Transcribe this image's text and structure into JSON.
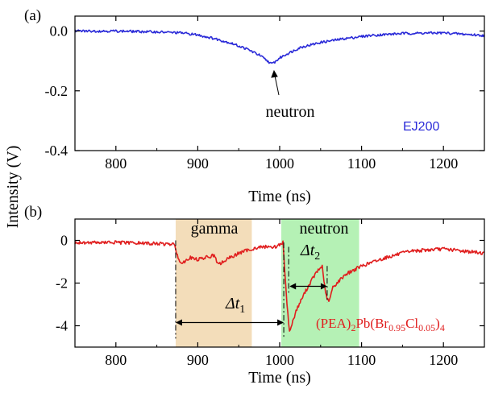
{
  "chart_data": [
    {
      "panel": "(a)",
      "type": "line",
      "xlabel": "Time (ns)",
      "ylabel": "Intensity (V)",
      "xlim": [
        750,
        1250
      ],
      "ylim": [
        -0.4,
        0.05
      ],
      "xticks": [
        800,
        900,
        1000,
        1100,
        1200
      ],
      "yticks": [
        0.0,
        -0.2,
        -0.4
      ],
      "ytick_labels": [
        "0.0",
        "-0.2",
        "-0.4"
      ],
      "grid": false,
      "series": [
        {
          "name": "EJ200",
          "color": "#2a2ad8",
          "x": [
            750,
            800,
            850,
            880,
            900,
            920,
            940,
            960,
            975,
            985,
            990,
            995,
            1000,
            1010,
            1025,
            1050,
            1080,
            1110,
            1150,
            1200,
            1250
          ],
          "y": [
            0.0,
            0.0,
            -0.003,
            -0.006,
            -0.013,
            -0.025,
            -0.04,
            -0.06,
            -0.08,
            -0.1,
            -0.11,
            -0.102,
            -0.09,
            -0.075,
            -0.055,
            -0.038,
            -0.025,
            -0.015,
            -0.008,
            -0.006,
            -0.015
          ]
        }
      ],
      "annotations": [
        {
          "text": "neutron",
          "x": 990,
          "y": -0.3,
          "arrow_to": [
            988,
            -0.11
          ]
        }
      ]
    },
    {
      "panel": "(b)",
      "type": "line",
      "xlabel": "Time (ns)",
      "ylabel": "Intensity (V)",
      "xlim": [
        750,
        1250
      ],
      "ylim": [
        -5,
        1
      ],
      "xticks": [
        800,
        900,
        1000,
        1100,
        1200
      ],
      "yticks": [
        0,
        -2,
        -4
      ],
      "grid": false,
      "series": [
        {
          "name_parts": [
            "(PEA)",
            "2",
            "Pb(Br",
            "0.95",
            "Cl",
            "0.05",
            ")",
            "4"
          ],
          "color": "#e01e1e",
          "x": [
            750,
            800,
            850,
            872,
            874,
            880,
            890,
            900,
            910,
            920,
            925,
            935,
            950,
            965,
            980,
            995,
            1004,
            1008,
            1012,
            1020,
            1030,
            1040,
            1045,
            1052,
            1056,
            1060,
            1065,
            1080,
            1100,
            1130,
            1160,
            1200,
            1250
          ],
          "y": [
            -0.1,
            -0.1,
            -0.15,
            -0.2,
            -0.6,
            -1.1,
            -0.8,
            -0.9,
            -0.8,
            -0.7,
            -1.15,
            -0.9,
            -0.6,
            -0.4,
            -0.3,
            -0.3,
            -0.1,
            -2.5,
            -4.3,
            -3.3,
            -2.5,
            -1.8,
            -1.5,
            -1.2,
            -2.5,
            -2.9,
            -2.2,
            -1.6,
            -1.2,
            -0.8,
            -0.5,
            -0.4,
            -0.6
          ]
        }
      ],
      "regions": [
        {
          "label": "gamma",
          "x": [
            873,
            966
          ],
          "color": "#f3ddba"
        },
        {
          "label": "neutron",
          "x": [
            1002,
            1097
          ],
          "color": "#b5f1b5"
        }
      ],
      "markers": [
        {
          "label_italic": "Δt",
          "label_sub": "1",
          "from": 873,
          "to": 1005,
          "y": -3.85
        },
        {
          "label_italic": "Δt",
          "label_sub": "2",
          "from": 1012,
          "to": 1058,
          "y": -2.15
        }
      ]
    }
  ]
}
